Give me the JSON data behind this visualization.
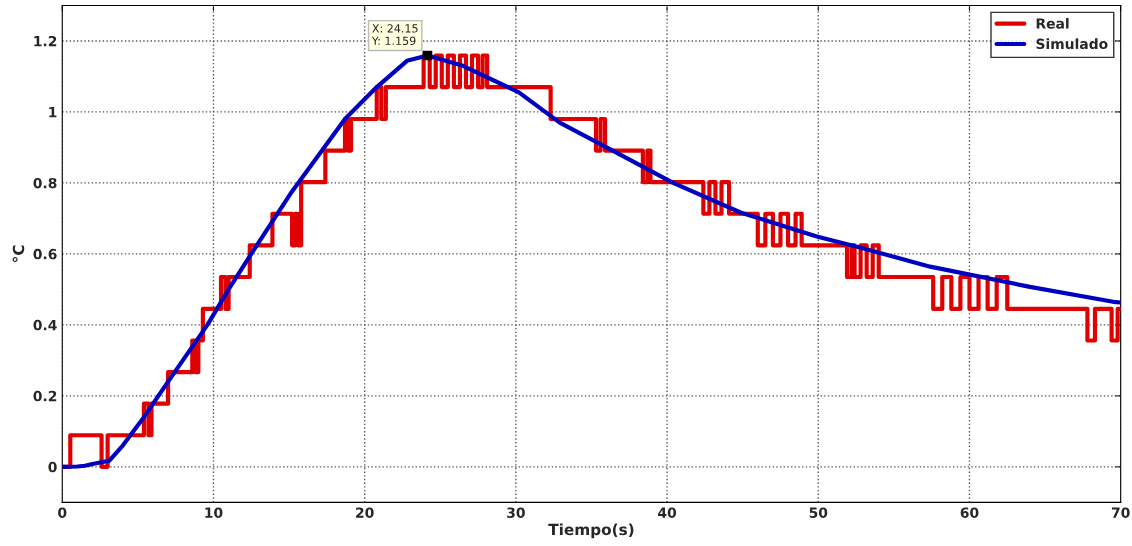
{
  "chart_data": {
    "type": "line",
    "xlabel": "Tiempo(s)",
    "ylabel": "°C",
    "xlim": [
      0,
      70
    ],
    "ylim": [
      -0.1,
      1.3
    ],
    "xticks": [
      0,
      10,
      20,
      30,
      40,
      50,
      60,
      70
    ],
    "yticks": [
      0,
      {
        "value": 0.2,
        "label": "0.2"
      },
      {
        "value": 0.4,
        "label": "0.4"
      },
      {
        "value": 0.6,
        "label": "0.6"
      },
      {
        "value": 0.8,
        "label": "0.8"
      },
      1,
      {
        "value": 1.2,
        "label": "1.2"
      }
    ],
    "grid": true,
    "legend": "top right",
    "line_style": "solid",
    "marker": "none",
    "annotations": [
      {
        "text": "X: 24.15\nY: 1.159",
        "x": 24.15,
        "y": 1.159
      }
    ],
    "series": [
      {
        "name": "Real",
        "type": "step",
        "color": "#e00000",
        "x": [
          0,
          0.53,
          2.6,
          3.0,
          5.4,
          5.7,
          5.9,
          7.0,
          8.6,
          8.8,
          9.0,
          9.3,
          10.5,
          10.8,
          11.0,
          12.4,
          13.9,
          15.2,
          15.4,
          15.6,
          15.8,
          17.4,
          18.7,
          18.9,
          19.1,
          20.8,
          21.1,
          21.4,
          23.9,
          24.3,
          24.7,
          25.1,
          25.5,
          25.9,
          26.3,
          26.7,
          27.1,
          27.5,
          27.8,
          28.1,
          32.3,
          35.3,
          35.6,
          35.9,
          38.4,
          38.7,
          38.9,
          42.4,
          42.8,
          43.2,
          43.6,
          44.1,
          46.0,
          46.5,
          47.0,
          47.5,
          48.0,
          48.5,
          48.9,
          51.9,
          52.2,
          52.4,
          52.8,
          53.2,
          53.6,
          54.0,
          57.6,
          58.2,
          58.8,
          59.4,
          60.0,
          60.6,
          61.2,
          61.8,
          62.5,
          67.8,
          68.3,
          69.4,
          69.8,
          70
        ],
        "values": [
          0,
          0.089,
          0,
          0.089,
          0.178,
          0.089,
          0.178,
          0.267,
          0.356,
          0.267,
          0.356,
          0.445,
          0.535,
          0.445,
          0.535,
          0.624,
          0.713,
          0.624,
          0.713,
          0.624,
          0.802,
          0.891,
          0.98,
          0.891,
          0.98,
          1.07,
          0.98,
          1.07,
          1.159,
          1.07,
          1.159,
          1.07,
          1.159,
          1.07,
          1.159,
          1.07,
          1.159,
          1.07,
          1.159,
          1.07,
          0.98,
          0.891,
          0.98,
          0.891,
          0.802,
          0.891,
          0.802,
          0.713,
          0.802,
          0.713,
          0.802,
          0.713,
          0.624,
          0.713,
          0.624,
          0.713,
          0.624,
          0.713,
          0.624,
          0.535,
          0.624,
          0.535,
          0.624,
          0.535,
          0.624,
          0.535,
          0.445,
          0.535,
          0.445,
          0.535,
          0.445,
          0.535,
          0.445,
          0.535,
          0.445,
          0.356,
          0.445,
          0.356,
          0.445,
          0.445
        ]
      },
      {
        "name": "Simulado",
        "color": "#0000c0",
        "x": [
          0,
          1,
          1.5,
          2,
          3.1,
          4,
          5.4,
          7,
          9.6,
          11,
          12.8,
          15.1,
          18.7,
          20.8,
          22.8,
          24.15,
          26.5,
          30.2,
          32.9,
          36.0,
          40.4,
          44.9,
          49.9,
          52.5,
          57.4,
          64.0,
          69.5,
          70
        ],
        "values": [
          0,
          0.001,
          0.003,
          0.008,
          0.017,
          0.06,
          0.14,
          0.24,
          0.4,
          0.5,
          0.62,
          0.77,
          0.98,
          1.07,
          1.144,
          1.159,
          1.13,
          1.055,
          0.97,
          0.9,
          0.8,
          0.716,
          0.649,
          0.621,
          0.564,
          0.507,
          0.465,
          0.463
        ]
      }
    ]
  }
}
